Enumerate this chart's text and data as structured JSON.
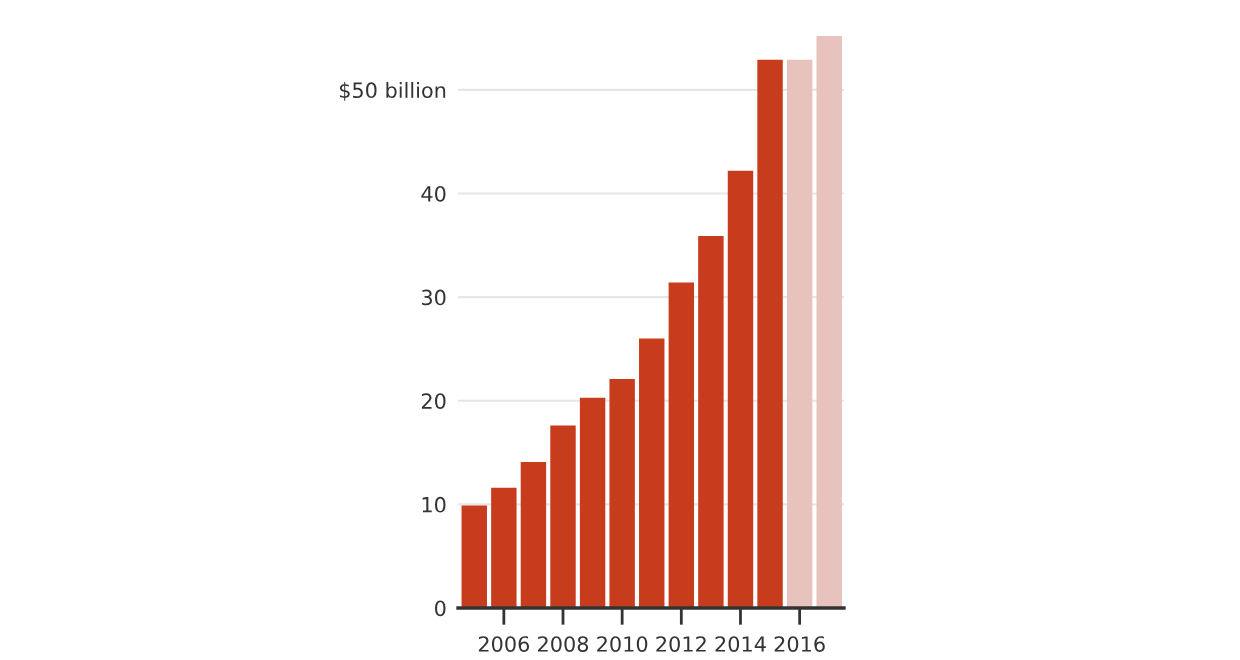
{
  "chart_data": {
    "type": "bar",
    "categories": [
      null,
      "2006",
      null,
      "2008",
      null,
      "2010",
      null,
      "2012",
      null,
      "2014",
      null,
      "2016",
      null
    ],
    "values": [
      9.9,
      11.6,
      14.1,
      17.6,
      20.3,
      22.1,
      26.0,
      31.4,
      35.9,
      42.2,
      52.9,
      52.9,
      55.2
    ],
    "colors": [
      "#c83c1e",
      "#c83c1e",
      "#c83c1e",
      "#c83c1e",
      "#c83c1e",
      "#c83c1e",
      "#c83c1e",
      "#c83c1e",
      "#c83c1e",
      "#c83c1e",
      "#c83c1e",
      "#e8c2bc",
      "#e8c2bc"
    ],
    "ylim": [
      0,
      55.2
    ],
    "yticks": [
      0,
      10,
      20,
      30,
      40,
      {
        "value": 50,
        "label": "$50 billion"
      }
    ],
    "grid": "y"
  }
}
